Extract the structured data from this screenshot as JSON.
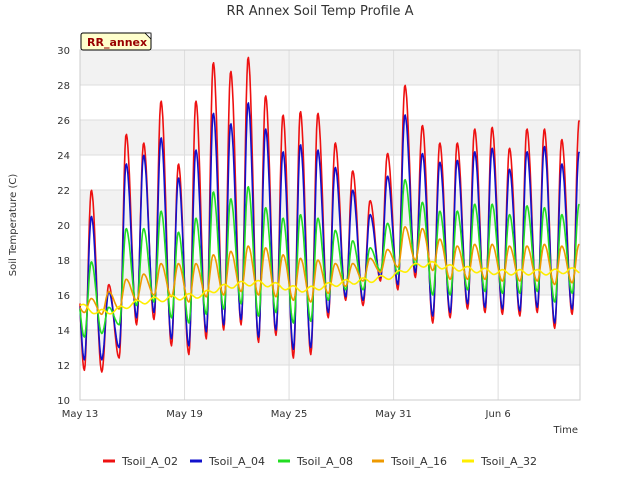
{
  "chart_data": {
    "type": "line",
    "title": "RR Annex Soil Temp Profile A",
    "badge": "RR_annex",
    "xlabel": "Time",
    "ylabel": "Soil Temperature (C)",
    "ylim": [
      10,
      30
    ],
    "yticks": [
      10,
      12,
      14,
      16,
      18,
      20,
      22,
      24,
      26,
      28,
      30
    ],
    "xlim": [
      0,
      28.7
    ],
    "xticks": [
      {
        "label": "May 13",
        "value": 0
      },
      {
        "label": "May 19",
        "value": 6
      },
      {
        "label": "May 25",
        "value": 12
      },
      {
        "label": "May 31",
        "value": 18
      },
      {
        "label": "Jun 6",
        "value": 24
      }
    ],
    "x_unit": "days since May 13",
    "grid": true,
    "band_background": true,
    "legend_position": "bottom",
    "series": [
      {
        "name": "Tsoil_A_02",
        "color": "#ee1111",
        "daily_max": [
          22.0,
          16.6,
          25.2,
          24.7,
          27.1,
          23.5,
          27.1,
          29.3,
          28.8,
          29.6,
          27.4,
          26.3,
          26.5,
          26.4,
          24.7,
          23.1,
          21.4,
          24.1,
          28.0,
          25.7,
          24.7,
          24.7,
          25.5,
          25.6,
          24.4,
          25.5,
          25.5,
          24.9,
          26.0
        ],
        "daily_min": [
          11.7,
          11.6,
          12.4,
          14.3,
          14.6,
          13.1,
          12.6,
          13.5,
          14.0,
          14.3,
          13.3,
          13.7,
          12.4,
          12.6,
          14.7,
          15.7,
          15.4,
          16.8,
          16.3,
          17.0,
          14.4,
          14.7,
          15.2,
          15.0,
          14.9,
          14.8,
          15.0,
          14.1,
          14.9
        ]
      },
      {
        "name": "Tsoil_A_04",
        "color": "#1111cc",
        "daily_max": [
          20.5,
          16.2,
          23.5,
          24.0,
          25.0,
          22.7,
          24.3,
          26.4,
          25.8,
          27.0,
          25.5,
          24.2,
          24.6,
          24.3,
          23.3,
          22.0,
          20.6,
          22.8,
          26.3,
          24.1,
          23.6,
          23.7,
          24.2,
          24.4,
          23.2,
          24.2,
          24.5,
          23.5,
          24.2
        ],
        "daily_min": [
          12.3,
          12.3,
          13.0,
          14.7,
          15.0,
          13.5,
          13.1,
          13.9,
          14.3,
          14.6,
          13.6,
          14.0,
          12.9,
          13.0,
          15.0,
          15.9,
          15.7,
          17.0,
          16.6,
          17.3,
          14.8,
          15.0,
          15.5,
          15.3,
          15.2,
          15.1,
          15.3,
          14.4,
          15.2
        ]
      },
      {
        "name": "Tsoil_A_08",
        "color": "#22dd22",
        "daily_max": [
          17.9,
          15.3,
          19.8,
          19.8,
          20.8,
          19.6,
          20.4,
          21.9,
          21.5,
          22.2,
          21.0,
          20.4,
          20.6,
          20.4,
          19.7,
          19.1,
          18.7,
          20.1,
          22.6,
          21.3,
          20.8,
          20.8,
          21.2,
          21.2,
          20.6,
          21.1,
          21.0,
          20.6,
          21.2
        ],
        "daily_min": [
          13.6,
          13.8,
          14.3,
          15.4,
          15.6,
          14.7,
          14.4,
          14.9,
          15.2,
          15.5,
          14.8,
          15.0,
          14.4,
          14.5,
          15.7,
          16.3,
          16.3,
          17.4,
          17.2,
          17.7,
          16.0,
          16.0,
          16.3,
          16.2,
          16.1,
          16.1,
          16.2,
          15.6,
          16.1
        ]
      },
      {
        "name": "Tsoil_A_16",
        "color": "#ee9900",
        "daily_max": [
          15.8,
          16.2,
          16.9,
          17.2,
          17.8,
          17.8,
          17.8,
          18.3,
          18.5,
          18.8,
          18.7,
          18.3,
          18.1,
          18.0,
          17.8,
          17.8,
          18.1,
          18.6,
          19.9,
          19.8,
          19.2,
          18.8,
          18.9,
          18.9,
          18.8,
          18.8,
          18.9,
          18.8,
          18.9
        ],
        "daily_min": [
          15.0,
          14.9,
          15.2,
          15.7,
          16.0,
          15.9,
          15.6,
          15.9,
          16.0,
          16.2,
          16.0,
          15.9,
          15.7,
          15.6,
          16.1,
          16.5,
          16.8,
          17.3,
          17.6,
          18.0,
          17.4,
          16.9,
          16.9,
          16.9,
          16.8,
          16.8,
          16.8,
          16.6,
          16.7
        ]
      },
      {
        "name": "Tsoil_A_32",
        "color": "#ffee00",
        "trend": [
          {
            "x": 0,
            "y": 15.4
          },
          {
            "x": 1,
            "y": 15.0
          },
          {
            "x": 2,
            "y": 15.1
          },
          {
            "x": 3,
            "y": 15.5
          },
          {
            "x": 4,
            "y": 15.7
          },
          {
            "x": 5,
            "y": 15.8
          },
          {
            "x": 6,
            "y": 15.9
          },
          {
            "x": 7,
            "y": 16.0
          },
          {
            "x": 8,
            "y": 16.4
          },
          {
            "x": 9,
            "y": 16.6
          },
          {
            "x": 10,
            "y": 16.7
          },
          {
            "x": 11,
            "y": 16.6
          },
          {
            "x": 12,
            "y": 16.4
          },
          {
            "x": 13,
            "y": 16.3
          },
          {
            "x": 14,
            "y": 16.5
          },
          {
            "x": 15,
            "y": 16.7
          },
          {
            "x": 16,
            "y": 16.8
          },
          {
            "x": 17,
            "y": 16.9
          },
          {
            "x": 18,
            "y": 17.1
          },
          {
            "x": 19,
            "y": 17.6
          },
          {
            "x": 20,
            "y": 17.8
          },
          {
            "x": 21,
            "y": 17.6
          },
          {
            "x": 22,
            "y": 17.5
          },
          {
            "x": 23,
            "y": 17.4
          },
          {
            "x": 24,
            "y": 17.3
          },
          {
            "x": 25,
            "y": 17.3
          },
          {
            "x": 26,
            "y": 17.3
          },
          {
            "x": 27,
            "y": 17.3
          },
          {
            "x": 28,
            "y": 17.4
          },
          {
            "x": 28.7,
            "y": 17.4
          }
        ],
        "daily_amplitude": 0.15
      }
    ]
  }
}
